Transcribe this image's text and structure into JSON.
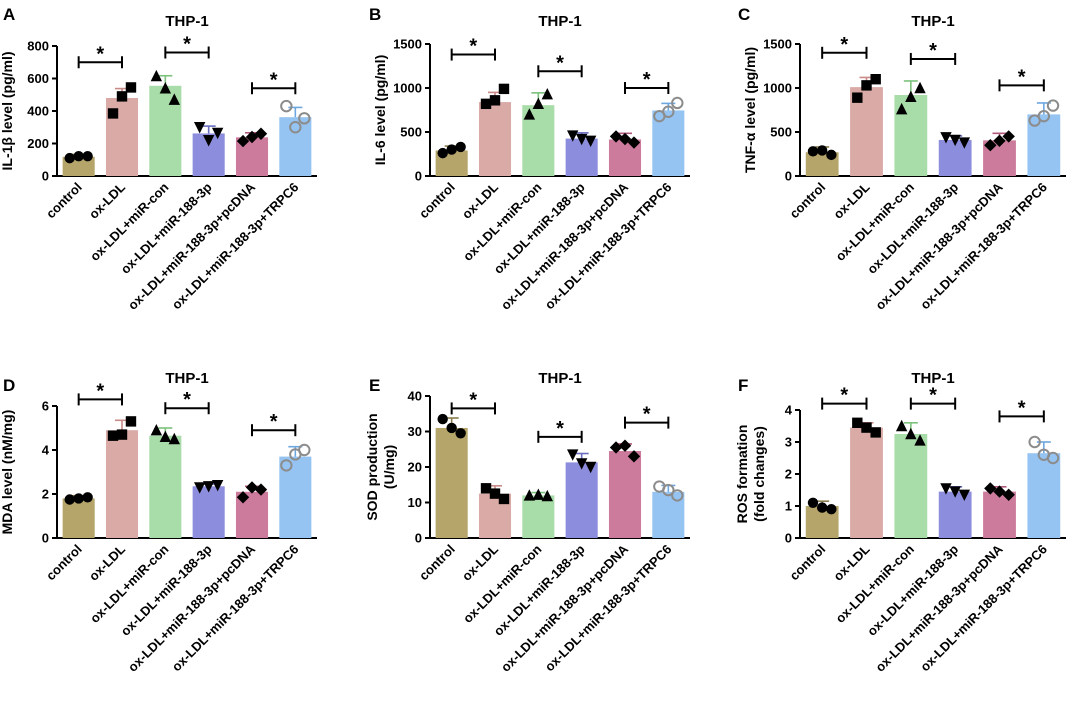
{
  "figure": {
    "group_label": "THP-1"
  },
  "chart_data": [
    {
      "panel": "A",
      "type": "bar",
      "title": "THP-1",
      "ylabel": "IL-1β level (pg/ml)",
      "ylim": [
        0,
        800
      ],
      "yticks": [
        0,
        200,
        400,
        600,
        800
      ],
      "categories": [
        "control",
        "ox-LDL",
        "ox-LDL+miR-con",
        "ox-LDL+miR-188-3p",
        "ox-LDL+miR-188-3p+pcDNA",
        "ox-LDL+miR-188-3p+TRPC6"
      ],
      "values": [
        118,
        480,
        555,
        262,
        238,
        362
      ],
      "errors": [
        15,
        58,
        62,
        45,
        28,
        60
      ],
      "points": [
        [
          110,
          122,
          122
        ],
        [
          385,
          545,
          490
        ],
        [
          615,
          470,
          540
        ],
        [
          300,
          265,
          220
        ],
        [
          215,
          260,
          240
        ],
        [
          430,
          355,
          300
        ]
      ],
      "markers": [
        "circle",
        "square",
        "triangle",
        "triangle-down",
        "diamond",
        "open-circle"
      ],
      "significance": [
        {
          "from": 0,
          "to": 1,
          "y": 700,
          "label": "*"
        },
        {
          "from": 2,
          "to": 3,
          "y": 760,
          "label": "*"
        },
        {
          "from": 4,
          "to": 5,
          "y": 540,
          "label": "*"
        }
      ]
    },
    {
      "panel": "B",
      "type": "bar",
      "title": "THP-1",
      "ylabel": "IL-6 level (pg/ml)",
      "ylim": [
        0,
        1500
      ],
      "yticks": [
        0,
        500,
        1000,
        1500
      ],
      "categories": [
        "control",
        "ox-LDL",
        "ox-LDL+miR-con",
        "ox-LDL+miR-188-3p",
        "ox-LDL+miR-188-3p+pcDNA",
        "ox-LDL+miR-188-3p+TRPC6"
      ],
      "values": [
        290,
        840,
        805,
        425,
        415,
        745
      ],
      "errors": [
        50,
        110,
        140,
        65,
        70,
        80
      ],
      "points": [
        [
          260,
          330,
          300
        ],
        [
          820,
          990,
          860
        ],
        [
          700,
          930,
          820
        ],
        [
          460,
          400,
          420
        ],
        [
          450,
          380,
          420
        ],
        [
          680,
          830,
          730
        ]
      ],
      "markers": [
        "circle",
        "square",
        "triangle",
        "triangle-down",
        "diamond",
        "open-circle"
      ],
      "significance": [
        {
          "from": 0,
          "to": 1,
          "y": 1380,
          "label": "*"
        },
        {
          "from": 2,
          "to": 3,
          "y": 1190,
          "label": "*"
        },
        {
          "from": 4,
          "to": 5,
          "y": 1000,
          "label": "*"
        }
      ]
    },
    {
      "panel": "C",
      "type": "bar",
      "title": "THP-1",
      "ylabel": "TNF-α level (pg/ml)",
      "ylim": [
        0,
        1500
      ],
      "yticks": [
        0,
        500,
        1000,
        1500
      ],
      "categories": [
        "control",
        "ox-LDL",
        "ox-LDL+miR-con",
        "ox-LDL+miR-188-3p",
        "ox-LDL+miR-188-3p+pcDNA",
        "ox-LDL+miR-188-3p+TRPC6"
      ],
      "values": [
        270,
        1010,
        920,
        410,
        405,
        700
      ],
      "errors": [
        60,
        110,
        160,
        45,
        80,
        130
      ],
      "points": [
        [
          280,
          240,
          290
        ],
        [
          890,
          1100,
          1030
        ],
        [
          760,
          1000,
          900
        ],
        [
          440,
          380,
          410
        ],
        [
          350,
          450,
          400
        ],
        [
          630,
          800,
          680
        ]
      ],
      "markers": [
        "circle",
        "square",
        "triangle",
        "triangle-down",
        "diamond",
        "open-circle"
      ],
      "significance": [
        {
          "from": 0,
          "to": 1,
          "y": 1400,
          "label": "*"
        },
        {
          "from": 2,
          "to": 3,
          "y": 1330,
          "label": "*"
        },
        {
          "from": 4,
          "to": 5,
          "y": 1030,
          "label": "*"
        }
      ]
    },
    {
      "panel": "D",
      "type": "bar",
      "title": "THP-1",
      "ylabel": "MDA level (nM/mg)",
      "ylim": [
        0,
        6
      ],
      "yticks": [
        0,
        2,
        4,
        6
      ],
      "categories": [
        "control",
        "ox-LDL",
        "ox-LDL+miR-con",
        "ox-LDL+miR-188-3p",
        "ox-LDL+miR-188-3p+pcDNA",
        "ox-LDL+miR-188-3p+TRPC6"
      ],
      "values": [
        1.8,
        4.9,
        4.65,
        2.35,
        2.1,
        3.7
      ],
      "errors": [
        0.12,
        0.45,
        0.35,
        0.1,
        0.25,
        0.45
      ],
      "points": [
        [
          1.75,
          1.85,
          1.8
        ],
        [
          4.65,
          5.3,
          4.7
        ],
        [
          4.9,
          4.5,
          4.6
        ],
        [
          2.3,
          2.4,
          2.35
        ],
        [
          1.85,
          2.2,
          2.3
        ],
        [
          3.3,
          4.0,
          3.8
        ]
      ],
      "markers": [
        "circle",
        "square",
        "triangle",
        "triangle-down",
        "diamond",
        "open-circle"
      ],
      "significance": [
        {
          "from": 0,
          "to": 1,
          "y": 6.3,
          "label": "*"
        },
        {
          "from": 2,
          "to": 3,
          "y": 5.9,
          "label": "*"
        },
        {
          "from": 4,
          "to": 5,
          "y": 4.9,
          "label": "*"
        }
      ]
    },
    {
      "panel": "E",
      "type": "bar",
      "title": "THP-1",
      "ylabel": "SOD production (U/mg)",
      "ylabel_lines": [
        "SOD production",
        "(U/mg)"
      ],
      "ylim": [
        0,
        40
      ],
      "yticks": [
        0,
        10,
        20,
        30,
        40
      ],
      "categories": [
        "control",
        "ox-LDL",
        "ox-LDL+miR-con",
        "ox-LDL+miR-188-3p",
        "ox-LDL+miR-188-3p+pcDNA",
        "ox-LDL+miR-188-3p+TRPC6"
      ],
      "values": [
        31,
        12.5,
        12,
        21.3,
        24.5,
        13
      ],
      "errors": [
        2.8,
        2.2,
        0.8,
        2.5,
        2.0,
        1.8
      ],
      "points": [
        [
          33.5,
          29.5,
          31
        ],
        [
          14,
          11,
          12.5
        ],
        [
          12,
          11.8,
          12.2
        ],
        [
          23.5,
          20,
          21
        ],
        [
          25.5,
          23,
          26
        ],
        [
          14.5,
          12,
          13.5
        ]
      ],
      "markers": [
        "circle",
        "square",
        "triangle",
        "triangle-down",
        "diamond",
        "open-circle"
      ],
      "significance": [
        {
          "from": 0,
          "to": 1,
          "y": 36.5,
          "label": "*"
        },
        {
          "from": 2,
          "to": 3,
          "y": 28.5,
          "label": "*"
        },
        {
          "from": 4,
          "to": 5,
          "y": 32.5,
          "label": "*"
        }
      ]
    },
    {
      "panel": "F",
      "type": "bar",
      "title": "THP-1",
      "ylabel": "ROS formation (fold changes)",
      "ylabel_lines": [
        "ROS formation",
        "(fold changes)"
      ],
      "ylim": [
        0,
        4
      ],
      "yticks": [
        0,
        1,
        2,
        3,
        4
      ],
      "categories": [
        "control",
        "ox-LDL",
        "ox-LDL+miR-con",
        "ox-LDL+miR-188-3p",
        "ox-LDL+miR-188-3p+pcDNA",
        "ox-LDL+miR-188-3p+TRPC6"
      ],
      "values": [
        1.0,
        3.45,
        3.25,
        1.45,
        1.45,
        2.65
      ],
      "errors": [
        0.15,
        0.15,
        0.35,
        0.15,
        0.15,
        0.35
      ],
      "points": [
        [
          1.1,
          0.9,
          0.95
        ],
        [
          3.6,
          3.3,
          3.45
        ],
        [
          3.5,
          3.05,
          3.25
        ],
        [
          1.55,
          1.35,
          1.45
        ],
        [
          1.55,
          1.35,
          1.45
        ],
        [
          3.0,
          2.5,
          2.6
        ]
      ],
      "markers": [
        "circle",
        "square",
        "triangle",
        "triangle-down",
        "diamond",
        "open-circle"
      ],
      "significance": [
        {
          "from": 0,
          "to": 1,
          "y": 4.2,
          "label": "*"
        },
        {
          "from": 2,
          "to": 3,
          "y": 4.2,
          "label": "*"
        },
        {
          "from": 4,
          "to": 5,
          "y": 3.8,
          "label": "*"
        }
      ]
    }
  ],
  "colors": {
    "bars": [
      "#b5a56a",
      "#d9aaa6",
      "#a8dca8",
      "#8c8ddc",
      "#cc7b9c",
      "#96c4f2"
    ],
    "error": [
      "#8a7d4d",
      "#c88b87",
      "#7cc27c",
      "#6a6cc0",
      "#b0587c",
      "#6da7e0"
    ],
    "axis": "#000000",
    "open_marker": "#8c8c8c"
  }
}
